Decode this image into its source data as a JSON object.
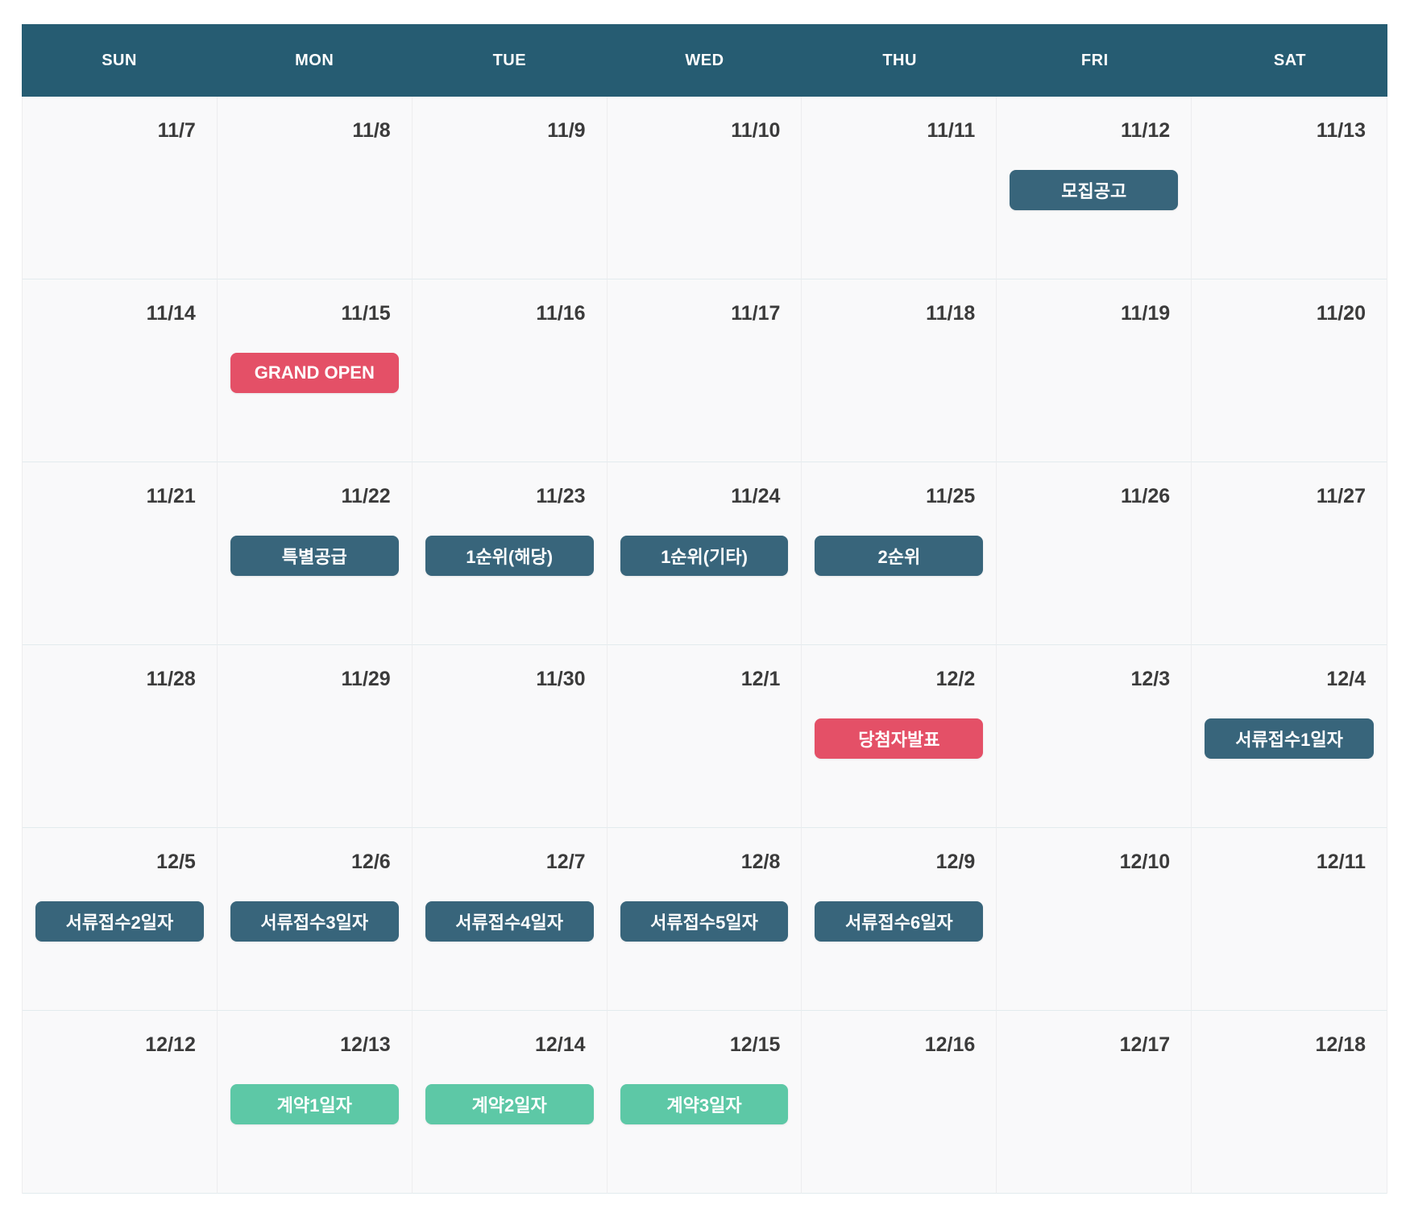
{
  "calendar": {
    "day_headers": [
      "SUN",
      "MON",
      "TUE",
      "WED",
      "THU",
      "FRI",
      "SAT"
    ],
    "colors": {
      "header_bg": "#265c72",
      "event_teal": "#38657b",
      "event_red": "#e45067",
      "event_green": "#5dc8a6"
    },
    "weeks": [
      {
        "days": [
          {
            "date": "11/7"
          },
          {
            "date": "11/8"
          },
          {
            "date": "11/9"
          },
          {
            "date": "11/10"
          },
          {
            "date": "11/11"
          },
          {
            "date": "11/12",
            "event": {
              "label": "모집공고",
              "type": "teal"
            }
          },
          {
            "date": "11/13"
          }
        ]
      },
      {
        "days": [
          {
            "date": "11/14"
          },
          {
            "date": "11/15",
            "event": {
              "label": "GRAND OPEN",
              "type": "red"
            }
          },
          {
            "date": "11/16"
          },
          {
            "date": "11/17"
          },
          {
            "date": "11/18"
          },
          {
            "date": "11/19"
          },
          {
            "date": "11/20"
          }
        ]
      },
      {
        "days": [
          {
            "date": "11/21"
          },
          {
            "date": "11/22",
            "event": {
              "label": "특별공급",
              "type": "teal"
            }
          },
          {
            "date": "11/23",
            "event": {
              "label": "1순위(해당)",
              "type": "teal"
            }
          },
          {
            "date": "11/24",
            "event": {
              "label": "1순위(기타)",
              "type": "teal"
            }
          },
          {
            "date": "11/25",
            "event": {
              "label": "2순위",
              "type": "teal"
            }
          },
          {
            "date": "11/26"
          },
          {
            "date": "11/27"
          }
        ]
      },
      {
        "days": [
          {
            "date": "11/28"
          },
          {
            "date": "11/29"
          },
          {
            "date": "11/30"
          },
          {
            "date": "12/1"
          },
          {
            "date": "12/2",
            "event": {
              "label": "당첨자발표",
              "type": "red"
            }
          },
          {
            "date": "12/3"
          },
          {
            "date": "12/4",
            "event": {
              "label": "서류접수1일자",
              "type": "teal"
            }
          }
        ]
      },
      {
        "days": [
          {
            "date": "12/5",
            "event": {
              "label": "서류접수2일자",
              "type": "teal"
            }
          },
          {
            "date": "12/6",
            "event": {
              "label": "서류접수3일자",
              "type": "teal"
            }
          },
          {
            "date": "12/7",
            "event": {
              "label": "서류접수4일자",
              "type": "teal"
            }
          },
          {
            "date": "12/8",
            "event": {
              "label": "서류접수5일자",
              "type": "teal"
            }
          },
          {
            "date": "12/9",
            "event": {
              "label": "서류접수6일자",
              "type": "teal"
            }
          },
          {
            "date": "12/10"
          },
          {
            "date": "12/11"
          }
        ]
      },
      {
        "days": [
          {
            "date": "12/12"
          },
          {
            "date": "12/13",
            "event": {
              "label": "계약1일자",
              "type": "green"
            }
          },
          {
            "date": "12/14",
            "event": {
              "label": "계약2일자",
              "type": "green"
            }
          },
          {
            "date": "12/15",
            "event": {
              "label": "계약3일자",
              "type": "green"
            }
          },
          {
            "date": "12/16"
          },
          {
            "date": "12/17"
          },
          {
            "date": "12/18"
          }
        ]
      }
    ]
  }
}
